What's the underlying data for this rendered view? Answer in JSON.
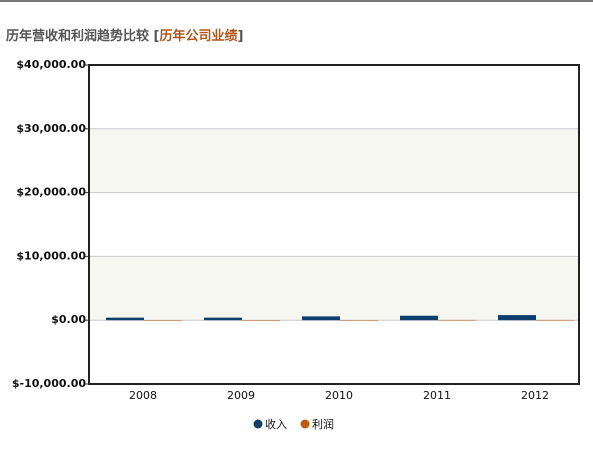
{
  "chart_data": {
    "type": "bar",
    "title": "历年营收和利润趋势比较",
    "title_link": "历年公司业绩",
    "categories": [
      "2008",
      "2009",
      "2010",
      "2011",
      "2012"
    ],
    "series": [
      {
        "name": "收入",
        "color": "#0d3f6e",
        "values": [
          400,
          400,
          600,
          700,
          800
        ]
      },
      {
        "name": "利润",
        "color": "#c05a10",
        "values": [
          20,
          20,
          30,
          40,
          40
        ]
      }
    ],
    "ylim": [
      -10000,
      40000
    ],
    "yticks": [
      {
        "value": -10000,
        "label": "$-10,000.00"
      },
      {
        "value": 0,
        "label": "$0.00"
      },
      {
        "value": 10000,
        "label": "$10,000.00"
      },
      {
        "value": 20000,
        "label": "$20,000.00"
      },
      {
        "value": 30000,
        "label": "$30,000.00"
      },
      {
        "value": 40000,
        "label": "$40,000.00"
      }
    ],
    "grid": true
  }
}
